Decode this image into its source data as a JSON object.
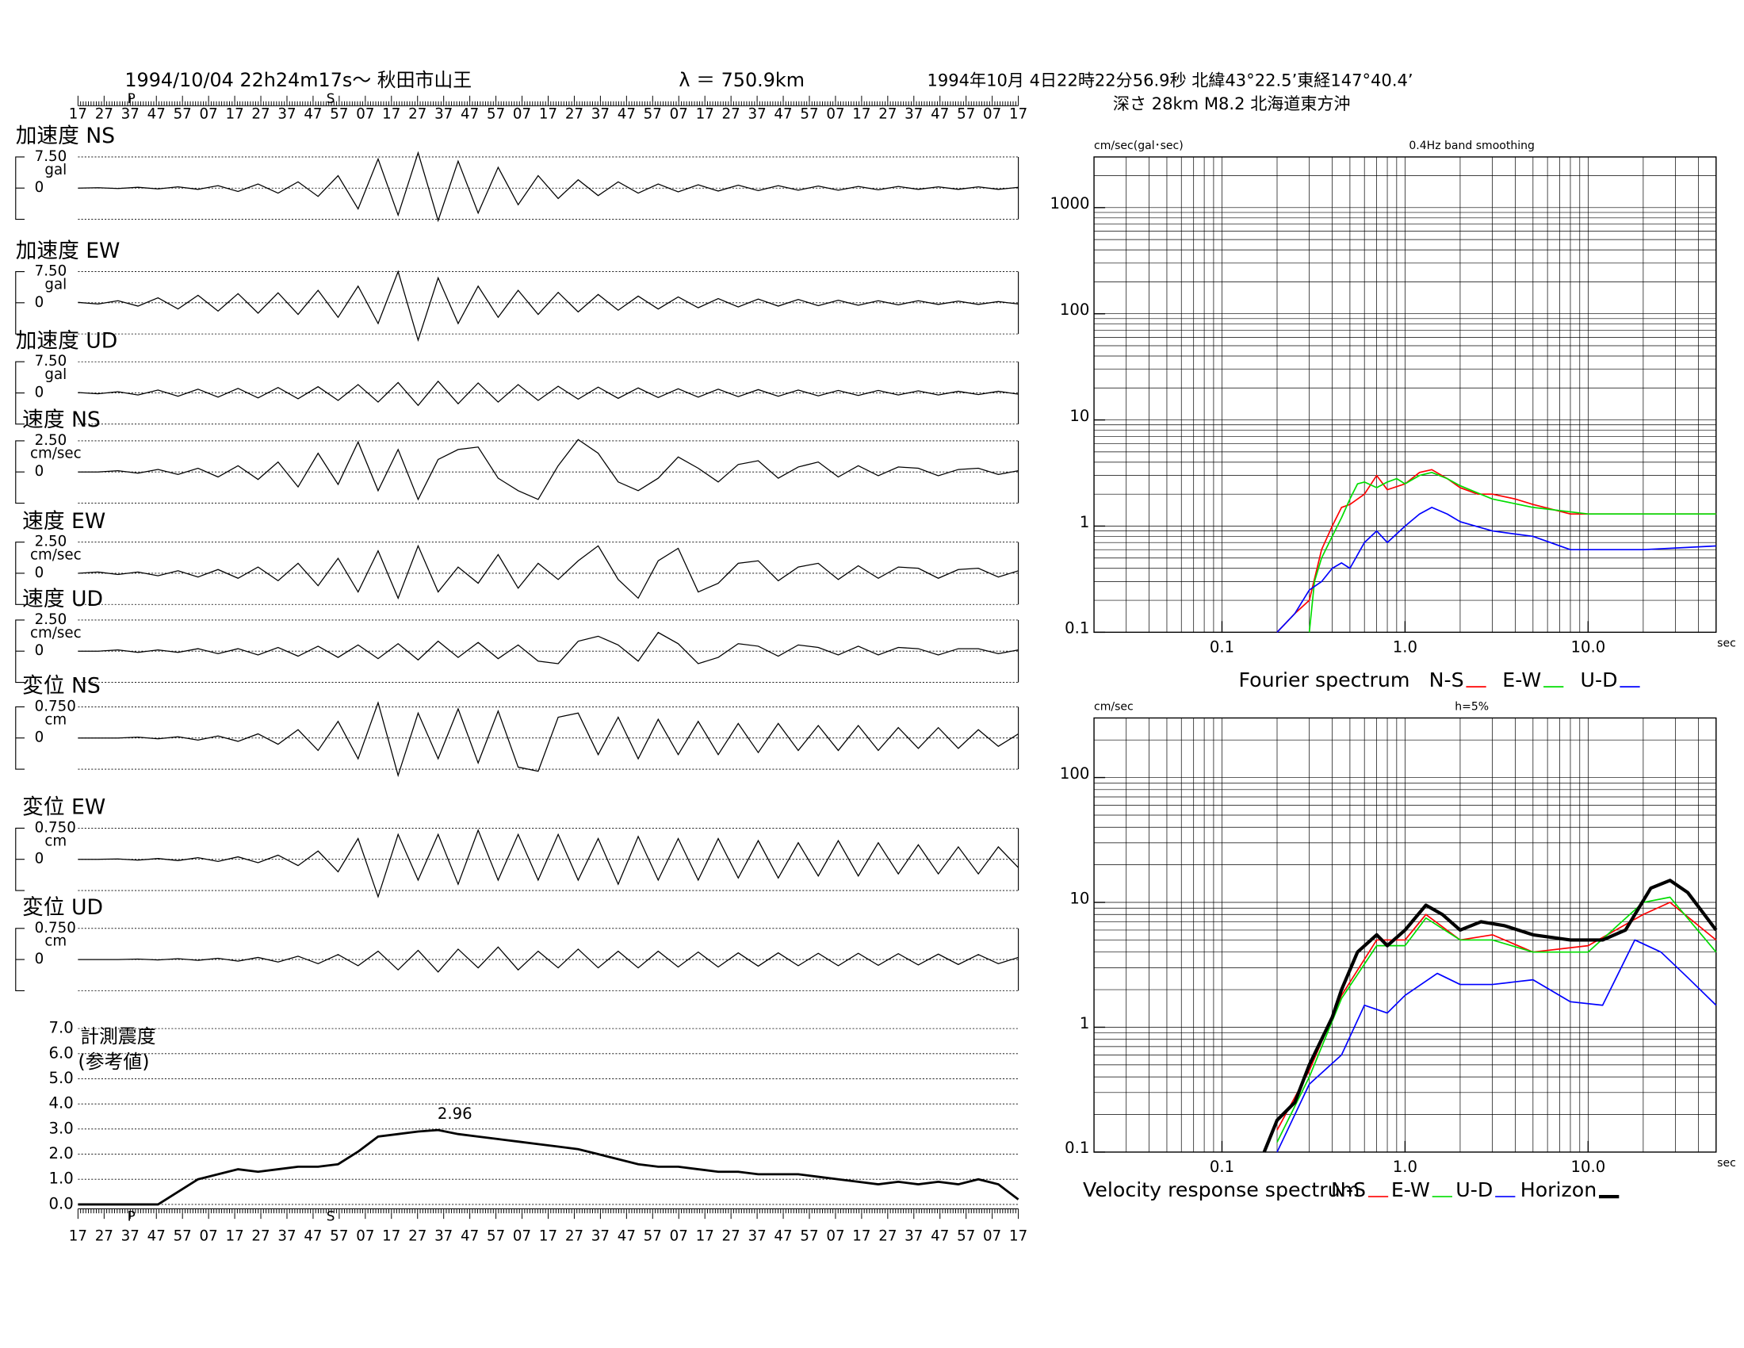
{
  "header": {
    "title": "1994/10/04  22h24m17s〜  秋田市山王",
    "distance": "λ ＝ 750.9km",
    "event": "1994年10月 4日22時22分56.9秒 北緯43°22.5’東経147°40.4’",
    "event2": "深さ 28km M8.2 北海道東方沖"
  },
  "time_labels": [
    "17",
    "27",
    "37",
    "47",
    "57",
    "07",
    "17",
    "27",
    "37",
    "47",
    "57",
    "07",
    "17",
    "27",
    "37",
    "47",
    "57",
    "07",
    "17",
    "27",
    "37",
    "47",
    "57",
    "07",
    "17",
    "27",
    "37",
    "47",
    "57",
    "07",
    "17",
    "27",
    "37",
    "47",
    "57",
    "07",
    "17"
  ],
  "time_markers": [
    "P",
    "S"
  ],
  "chart_data": [
    {
      "type": "trace",
      "title": "加速度 NS",
      "unit": "gal",
      "color": "#000000",
      "ylim": [
        -7.5,
        7.5
      ],
      "yticks": [
        {
          "value": 7.5,
          "label": "7.50"
        },
        0
      ],
      "values": [
        0,
        0.1,
        -0.1,
        0.2,
        -0.2,
        0.3,
        -0.3,
        0.6,
        -0.8,
        1.0,
        -1.2,
        1.5,
        -2.0,
        3.0,
        -5.0,
        7.0,
        -6.5,
        8.5,
        -7.8,
        6.5,
        -6.0,
        5.0,
        -4.0,
        3.0,
        -2.5,
        2.0,
        -1.8,
        1.5,
        -1.2,
        1.0,
        -0.9,
        0.8,
        -0.7,
        0.7,
        -0.6,
        0.6,
        -0.5,
        0.5,
        -0.5,
        0.4,
        -0.4,
        0.4,
        -0.3,
        0.3,
        -0.3,
        0.3,
        -0.3,
        0.2
      ]
    },
    {
      "type": "trace",
      "title": "加速度 EW",
      "unit": "gal",
      "color": "#000000",
      "ylim": [
        -7.5,
        7.5
      ],
      "yticks": [
        {
          "value": 7.5,
          "label": "7.50"
        },
        0
      ],
      "values": [
        0.1,
        -0.3,
        0.5,
        -0.8,
        1.2,
        -1.5,
        1.8,
        -2.0,
        2.2,
        -2.5,
        2.4,
        -2.8,
        3.0,
        -3.5,
        4.0,
        -5.0,
        7.5,
        -9.0,
        6.0,
        -5.0,
        4.0,
        -3.5,
        3.0,
        -2.8,
        2.5,
        -2.2,
        2.0,
        -1.8,
        1.6,
        -1.5,
        1.4,
        -1.2,
        1.0,
        -1.0,
        0.9,
        -0.8,
        0.8,
        -0.7,
        0.6,
        -0.6,
        0.5,
        -0.5,
        0.5,
        -0.4,
        0.4,
        -0.4,
        0.3,
        -0.3
      ]
    },
    {
      "type": "trace",
      "title": "加速度 UD",
      "unit": "gal",
      "color": "#000000",
      "ylim": [
        -7.5,
        7.5
      ],
      "yticks": [
        {
          "value": 7.5,
          "label": "7.50"
        },
        0
      ],
      "values": [
        0.1,
        -0.2,
        0.3,
        -0.5,
        0.7,
        -0.8,
        0.9,
        -1.0,
        1.1,
        -1.2,
        1.3,
        -1.4,
        1.5,
        -1.8,
        2.0,
        -2.2,
        2.5,
        -3.0,
        2.8,
        -2.6,
        2.4,
        -2.2,
        2.0,
        -1.8,
        1.6,
        -1.5,
        1.4,
        -1.3,
        1.2,
        -1.1,
        1.0,
        -1.0,
        0.9,
        -0.9,
        0.8,
        -0.8,
        0.7,
        -0.7,
        0.6,
        -0.6,
        0.6,
        -0.5,
        0.5,
        -0.5,
        0.4,
        -0.4,
        0.4,
        -0.3
      ]
    },
    {
      "type": "trace",
      "title": "速度 NS",
      "unit": "cm/sec",
      "color": "#000000",
      "ylim": [
        -2.5,
        2.5
      ],
      "yticks": [
        {
          "value": 2.5,
          "label": "2.50"
        },
        0
      ],
      "values": [
        0,
        0,
        0.1,
        -0.1,
        0.2,
        -0.2,
        0.3,
        -0.4,
        0.5,
        -0.6,
        0.8,
        -1.2,
        1.5,
        -1.0,
        2.4,
        -1.5,
        1.8,
        -2.2,
        1.0,
        1.8,
        2.0,
        -0.5,
        -1.5,
        -2.2,
        0.5,
        2.6,
        1.5,
        -0.8,
        -1.5,
        -0.5,
        1.2,
        0.3,
        -0.8,
        0.6,
        0.9,
        -0.5,
        0.4,
        0.8,
        -0.4,
        0.5,
        -0.3,
        0.4,
        0.3,
        -0.3,
        0.2,
        0.3,
        -0.2,
        0.1
      ]
    },
    {
      "type": "trace",
      "title": "速度 EW",
      "unit": "cm/sec",
      "color": "#000000",
      "ylim": [
        -2.5,
        2.5
      ],
      "yticks": [
        {
          "value": 2.5,
          "label": "2.50"
        },
        0
      ],
      "values": [
        0,
        0.1,
        -0.1,
        0.1,
        -0.2,
        0.2,
        -0.3,
        0.3,
        -0.4,
        0.5,
        -0.6,
        0.8,
        -1.0,
        1.2,
        -1.5,
        1.8,
        -2.0,
        2.2,
        -1.5,
        0.5,
        -0.8,
        1.5,
        -1.2,
        0.8,
        -0.5,
        1.0,
        2.2,
        -0.5,
        -2.0,
        1.0,
        2.0,
        -1.5,
        -0.8,
        0.8,
        1.0,
        -0.6,
        0.5,
        0.8,
        -0.5,
        0.6,
        -0.4,
        0.5,
        0.4,
        -0.4,
        0.3,
        0.4,
        -0.3,
        0.2
      ]
    },
    {
      "type": "trace",
      "title": "速度 UD",
      "unit": "cm/sec",
      "color": "#000000",
      "ylim": [
        -2.5,
        2.5
      ],
      "yticks": [
        {
          "value": 2.5,
          "label": "2.50"
        },
        0
      ],
      "values": [
        0,
        0,
        0.1,
        -0.1,
        0.1,
        -0.1,
        0.2,
        -0.2,
        0.2,
        -0.3,
        0.3,
        -0.4,
        0.4,
        -0.5,
        0.5,
        -0.6,
        0.6,
        -0.7,
        0.8,
        -0.5,
        0.7,
        -0.6,
        0.5,
        -0.8,
        -1.0,
        0.8,
        1.2,
        0.5,
        -0.8,
        1.5,
        0.6,
        -1.0,
        -0.5,
        0.6,
        0.4,
        -0.4,
        0.5,
        0.3,
        -0.3,
        0.4,
        -0.3,
        0.3,
        0.2,
        -0.3,
        0.2,
        0.2,
        -0.2,
        0.1
      ]
    },
    {
      "type": "trace",
      "title": "変位 NS",
      "unit": "cm",
      "color": "#000000",
      "ylim": [
        -0.75,
        0.75
      ],
      "yticks": [
        {
          "value": 0.75,
          "label": "0.750"
        },
        0
      ],
      "values": [
        0,
        0,
        0,
        0.02,
        -0.02,
        0.03,
        -0.05,
        0.05,
        -0.08,
        0.1,
        -0.15,
        0.2,
        -0.3,
        0.4,
        -0.5,
        0.85,
        -0.9,
        0.6,
        -0.5,
        0.7,
        -0.6,
        0.65,
        -0.7,
        -0.8,
        0.5,
        0.6,
        -0.4,
        0.5,
        -0.5,
        0.45,
        -0.4,
        0.4,
        -0.4,
        0.35,
        -0.35,
        0.35,
        -0.3,
        0.3,
        -0.3,
        0.3,
        -0.3,
        0.25,
        -0.25,
        0.25,
        -0.25,
        0.2,
        -0.2,
        0.1
      ]
    },
    {
      "type": "trace",
      "title": "変位 EW",
      "unit": "cm",
      "color": "#000000",
      "ylim": [
        -0.75,
        0.75
      ],
      "yticks": [
        {
          "value": 0.75,
          "label": "0.750"
        },
        0
      ],
      "values": [
        0,
        0,
        0.01,
        -0.02,
        0.02,
        -0.03,
        0.04,
        -0.05,
        0.06,
        -0.08,
        0.1,
        -0.15,
        0.2,
        -0.3,
        0.5,
        -0.9,
        0.6,
        -0.5,
        0.6,
        -0.6,
        0.7,
        -0.5,
        0.6,
        -0.5,
        0.6,
        -0.5,
        0.5,
        -0.6,
        0.55,
        -0.5,
        0.5,
        -0.5,
        0.5,
        -0.45,
        0.45,
        -0.45,
        0.4,
        -0.4,
        0.45,
        -0.4,
        0.4,
        -0.35,
        0.35,
        -0.35,
        0.3,
        -0.35,
        0.3,
        -0.2
      ]
    },
    {
      "type": "trace",
      "title": "変位 UD",
      "unit": "cm",
      "color": "#000000",
      "ylim": [
        -0.75,
        0.75
      ],
      "yticks": [
        {
          "value": 0.75,
          "label": "0.750"
        },
        0
      ],
      "values": [
        0,
        0,
        0,
        0.01,
        -0.01,
        0.02,
        -0.02,
        0.03,
        -0.04,
        0.05,
        -0.06,
        0.08,
        -0.1,
        0.12,
        -0.15,
        0.2,
        -0.25,
        0.22,
        -0.3,
        0.25,
        -0.2,
        0.3,
        -0.25,
        0.2,
        -0.2,
        0.25,
        -0.2,
        0.2,
        -0.2,
        0.2,
        -0.18,
        0.18,
        -0.18,
        0.16,
        -0.16,
        0.16,
        -0.15,
        0.15,
        -0.15,
        0.15,
        -0.14,
        0.14,
        -0.13,
        0.13,
        -0.12,
        0.12,
        -0.1,
        0.05
      ]
    },
    {
      "type": "line",
      "title": "計測震度",
      "subtitle": "(参考値)",
      "color": "#000000",
      "grid": true,
      "ylim": [
        0,
        7
      ],
      "yticks": [
        {
          "value": 0,
          "label": "0.0"
        },
        {
          "value": 1,
          "label": "1.0"
        },
        {
          "value": 2,
          "label": "2.0"
        },
        {
          "value": 3,
          "label": "3.0"
        },
        {
          "value": 4,
          "label": "4.0"
        },
        {
          "value": 5,
          "label": "5.0"
        },
        {
          "value": 6,
          "label": "6.0"
        },
        {
          "value": 7,
          "label": "7.0"
        }
      ],
      "values": [
        0,
        0,
        0,
        0,
        0,
        0.5,
        1.0,
        1.2,
        1.4,
        1.3,
        1.4,
        1.5,
        1.5,
        1.6,
        2.1,
        2.7,
        2.8,
        2.9,
        2.96,
        2.8,
        2.7,
        2.6,
        2.5,
        2.4,
        2.3,
        2.2,
        2.0,
        1.8,
        1.6,
        1.5,
        1.5,
        1.4,
        1.3,
        1.3,
        1.2,
        1.2,
        1.2,
        1.1,
        1.0,
        0.9,
        0.8,
        0.9,
        0.8,
        0.9,
        0.8,
        1.0,
        0.8,
        0.2
      ]
    },
    {
      "type": "loglog",
      "unit_label": "cm/sec(gal･sec)",
      "title": "0.4Hz band smoothing",
      "x_unit": "sec",
      "legend_title": "Fourier spectrum",
      "grid": true,
      "xlim": [
        0.02,
        50
      ],
      "ylim": [
        0.1,
        3000
      ],
      "xticks": [
        0.1,
        {
          "value": 1,
          "label": "1.0"
        },
        {
          "value": 10,
          "label": "10.0"
        }
      ],
      "yticks": [
        0.1,
        1,
        10,
        100,
        1000
      ],
      "grid_x": [
        0.02,
        0.03,
        0.04,
        0.05,
        0.06,
        0.07,
        0.08,
        0.09,
        0.1,
        0.2,
        0.3,
        0.4,
        0.5,
        0.6,
        0.7,
        0.8,
        0.9,
        1,
        2,
        3,
        4,
        5,
        6,
        7,
        8,
        9,
        10,
        20,
        30,
        40,
        50
      ],
      "grid_y": [
        0.1,
        0.2,
        0.3,
        0.4,
        0.5,
        0.6,
        0.7,
        0.8,
        0.9,
        1,
        2,
        3,
        4,
        5,
        6,
        7,
        8,
        9,
        10,
        20,
        30,
        40,
        50,
        60,
        70,
        80,
        90,
        100,
        200,
        300,
        400,
        500,
        600,
        700,
        800,
        900,
        1000,
        2000,
        3000
      ],
      "series": [
        {
          "name": "N-S",
          "color": "#ff0000",
          "x": [
            0.2,
            0.25,
            0.3,
            0.35,
            0.4,
            0.45,
            0.5,
            0.6,
            0.7,
            0.8,
            1.0,
            1.2,
            1.4,
            1.7,
            2,
            2.5,
            3,
            4,
            5,
            8,
            20,
            50
          ],
          "values": [
            0.1,
            0.15,
            0.2,
            0.6,
            1.0,
            1.5,
            1.6,
            2.0,
            3.0,
            2.2,
            2.5,
            3.2,
            3.4,
            2.8,
            2.3,
            2.0,
            2.0,
            1.8,
            1.6,
            1.3,
            1.3,
            1.3
          ]
        },
        {
          "name": "E-W",
          "color": "#00dd00",
          "x": [
            0.3,
            0.32,
            0.35,
            0.4,
            0.45,
            0.5,
            0.55,
            0.6,
            0.7,
            0.8,
            0.9,
            1.0,
            1.2,
            1.4,
            1.7,
            2,
            3,
            5,
            10,
            20,
            50
          ],
          "values": [
            0.1,
            0.3,
            0.5,
            0.8,
            1.2,
            1.8,
            2.5,
            2.6,
            2.3,
            2.6,
            2.8,
            2.5,
            3.0,
            3.2,
            2.8,
            2.4,
            1.8,
            1.5,
            1.3,
            1.3,
            1.3
          ]
        },
        {
          "name": "U-D",
          "color": "#0000ff",
          "x": [
            0.2,
            0.25,
            0.3,
            0.35,
            0.4,
            0.45,
            0.5,
            0.6,
            0.7,
            0.8,
            1.0,
            1.2,
            1.4,
            1.7,
            2,
            3,
            5,
            8,
            20,
            50
          ],
          "values": [
            0.1,
            0.15,
            0.25,
            0.3,
            0.4,
            0.45,
            0.4,
            0.7,
            0.9,
            0.7,
            1.0,
            1.3,
            1.5,
            1.3,
            1.1,
            0.9,
            0.8,
            0.6,
            0.6,
            0.65
          ]
        }
      ]
    },
    {
      "type": "loglog",
      "unit_label": "cm/sec",
      "title": "h=5%",
      "x_unit": "sec",
      "legend_title": "Velocity response spectrum",
      "grid": true,
      "xlim": [
        0.02,
        50
      ],
      "ylim": [
        0.1,
        300
      ],
      "xticks": [
        0.1,
        {
          "value": 1,
          "label": "1.0"
        },
        {
          "value": 10,
          "label": "10.0"
        }
      ],
      "yticks": [
        0.1,
        1,
        10,
        100
      ],
      "grid_x": [
        0.02,
        0.03,
        0.04,
        0.05,
        0.06,
        0.07,
        0.08,
        0.09,
        0.1,
        0.2,
        0.3,
        0.4,
        0.5,
        0.6,
        0.7,
        0.8,
        0.9,
        1,
        2,
        3,
        4,
        5,
        6,
        7,
        8,
        9,
        10,
        20,
        30,
        40,
        50
      ],
      "grid_y": [
        0.1,
        0.2,
        0.3,
        0.4,
        0.5,
        0.6,
        0.7,
        0.8,
        0.9,
        1,
        2,
        3,
        4,
        5,
        6,
        7,
        8,
        9,
        10,
        20,
        30,
        40,
        50,
        60,
        70,
        80,
        90,
        100,
        200,
        300
      ],
      "series": [
        {
          "name": "N-S",
          "color": "#ff0000",
          "x": [
            0.2,
            0.3,
            0.45,
            0.7,
            1.0,
            1.3,
            2,
            3,
            5,
            10,
            20,
            28,
            50
          ],
          "values": [
            0.15,
            0.45,
            1.8,
            5.0,
            5.0,
            8.0,
            5.0,
            5.5,
            4.0,
            4.5,
            8.0,
            10,
            5.0
          ]
        },
        {
          "name": "E-W",
          "color": "#00dd00",
          "x": [
            0.2,
            0.3,
            0.45,
            0.7,
            1.0,
            1.3,
            2,
            3,
            5,
            10,
            20,
            28,
            50
          ],
          "values": [
            0.12,
            0.4,
            1.7,
            4.5,
            4.5,
            7.5,
            5.0,
            5.0,
            4.0,
            4.0,
            10,
            11,
            4.0
          ]
        },
        {
          "name": "U-D",
          "color": "#0000ff",
          "x": [
            0.2,
            0.3,
            0.45,
            0.6,
            0.8,
            1.0,
            1.5,
            2,
            3,
            5,
            8,
            12,
            18,
            25,
            35,
            50
          ],
          "values": [
            0.1,
            0.35,
            0.6,
            1.5,
            1.3,
            1.8,
            2.7,
            2.2,
            2.2,
            2.4,
            1.6,
            1.5,
            5.0,
            4.0,
            2.5,
            1.5
          ]
        },
        {
          "name": "Horizon",
          "color": "#000000",
          "line_width": 3,
          "x": [
            0.17,
            0.2,
            0.25,
            0.3,
            0.35,
            0.4,
            0.45,
            0.55,
            0.7,
            0.8,
            1.0,
            1.3,
            1.6,
            2,
            2.6,
            3.5,
            5,
            8,
            12,
            16,
            22,
            28,
            35,
            50
          ],
          "values": [
            0.1,
            0.18,
            0.25,
            0.5,
            0.8,
            1.2,
            2.0,
            4.0,
            5.5,
            4.5,
            6.0,
            9.5,
            8.0,
            6.0,
            7.0,
            6.5,
            5.5,
            5.0,
            5.0,
            6.0,
            13,
            15,
            12,
            6.0
          ]
        }
      ]
    }
  ]
}
